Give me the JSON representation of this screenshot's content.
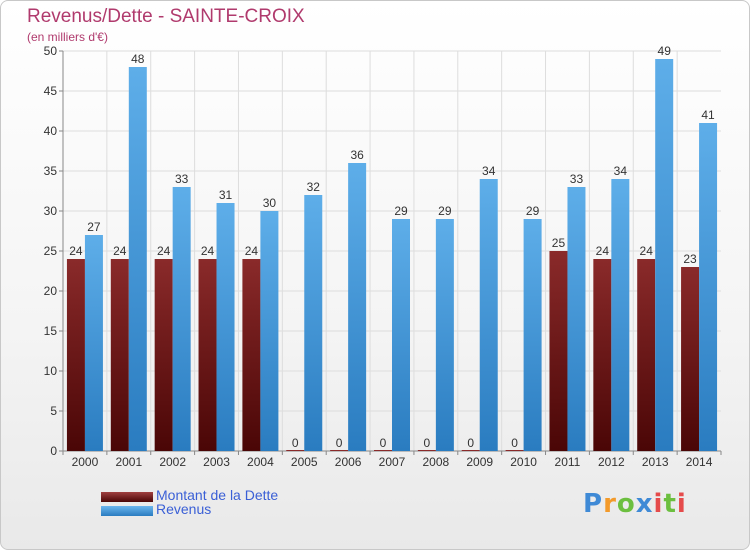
{
  "colors": {
    "dette": "#7a1f1f",
    "dette_dark": "#4a0a0a",
    "revenus": "#5aa9e6",
    "revenus_dark": "#2d7fc1",
    "title": "#b03a6d",
    "legend_text": "#3a5fd6"
  },
  "chart_data": {
    "type": "bar",
    "title": "Revenus/Dette - SAINTE-CROIX",
    "subtitle": "(en milliers d'€)",
    "xlabel": "",
    "ylabel": "",
    "ylim": [
      0,
      50
    ],
    "yticks": [
      0,
      5,
      10,
      15,
      20,
      25,
      30,
      35,
      40,
      45,
      50
    ],
    "grid": true,
    "categories": [
      "2000",
      "2001",
      "2002",
      "2003",
      "2004",
      "2005",
      "2006",
      "2007",
      "2008",
      "2009",
      "2010",
      "2011",
      "2012",
      "2013",
      "2014"
    ],
    "series": [
      {
        "name": "Montant de la Dette",
        "values": [
          24,
          24,
          24,
          24,
          24,
          0,
          0,
          0,
          0,
          0,
          0,
          25,
          24,
          24,
          23
        ]
      },
      {
        "name": "Revenus",
        "values": [
          27,
          48,
          33,
          31,
          30,
          32,
          36,
          29,
          29,
          34,
          29,
          33,
          34,
          49,
          41
        ]
      }
    ]
  },
  "legend": {
    "dette_label": "Montant de la Dette",
    "revenus_label": "Revenus"
  },
  "logo": {
    "p": "P",
    "r": "r",
    "o": "o",
    "x": "x",
    "i": "i",
    "t": "t",
    "i2": "i"
  }
}
